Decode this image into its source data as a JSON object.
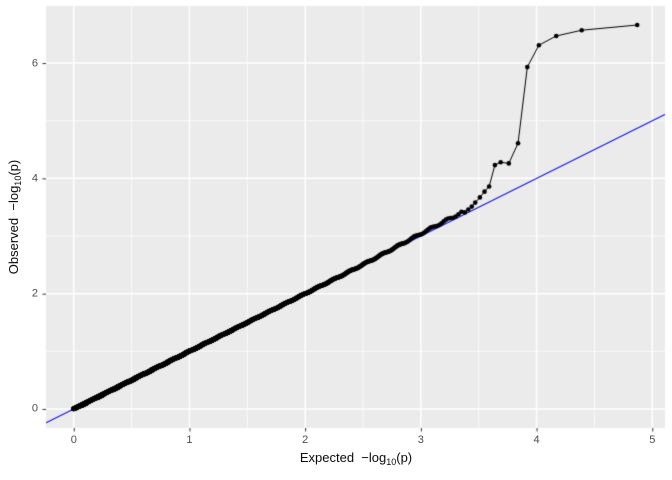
{
  "chart_data": {
    "type": "scatter",
    "chart_kind": "qq-plot",
    "title": "",
    "xlabel": "Expected −log10(p)",
    "ylabel": "Observed −log10(p)",
    "xlabel_parts": {
      "pre": "Expected  −log",
      "sub": "10",
      "post": "(p)"
    },
    "ylabel_parts": {
      "pre": "Observed  −log",
      "sub": "10",
      "post": "(p)"
    },
    "x_tick_labels": [
      "0",
      "1",
      "2",
      "3",
      "4",
      "5"
    ],
    "x_tick_values": [
      0,
      1,
      2,
      3,
      4,
      5
    ],
    "y_tick_labels": [
      "0",
      "2",
      "4",
      "6"
    ],
    "y_tick_values": [
      0,
      2,
      4,
      6
    ],
    "x_minor_ticks": [
      0.5,
      1.5,
      2.5,
      3.5,
      4.5
    ],
    "y_minor_ticks": [
      1,
      3,
      5
    ],
    "xlim": [
      -0.24,
      5.11
    ],
    "ylim": [
      -0.33,
      6.99
    ],
    "grid": "on",
    "legend": "none",
    "n_points_estimated": 37000,
    "tail_points": [
      {
        "expected": 4.87,
        "observed": 6.66
      },
      {
        "expected": 4.39,
        "observed": 6.57
      },
      {
        "expected": 4.17,
        "observed": 6.47
      },
      {
        "expected": 4.02,
        "observed": 6.31
      },
      {
        "expected": 3.92,
        "observed": 5.93
      },
      {
        "expected": 3.84,
        "observed": 4.61
      },
      {
        "expected": 3.76,
        "observed": 4.26
      },
      {
        "expected": 3.69,
        "observed": 4.28
      },
      {
        "expected": 3.64,
        "observed": 4.23
      },
      {
        "expected": 3.59,
        "observed": 3.86
      },
      {
        "expected": 3.55,
        "observed": 3.77
      },
      {
        "expected": 3.51,
        "observed": 3.67
      },
      {
        "expected": 3.47,
        "observed": 3.58
      },
      {
        "expected": 3.44,
        "observed": 3.51
      },
      {
        "expected": 3.41,
        "observed": 3.46
      },
      {
        "expected": 3.38,
        "observed": 3.41
      }
    ],
    "bulk_band": {
      "description": "remaining points lie on observed ≈ expected",
      "inflation_start_x": 2.3,
      "inflation_max": 0.055
    },
    "reference_line": {
      "slope": 1,
      "intercept": 0,
      "color": "#0000DD"
    },
    "colors": {
      "panel_bg": "#EBEBEB",
      "grid_major": "#FFFFFF",
      "grid_minor": "#FFFFFF",
      "point": "#000000",
      "line": "#000000",
      "tick_mark": "#333333",
      "tick_label": "#4D4D4D",
      "axis_title": "#0A0A0A"
    }
  }
}
